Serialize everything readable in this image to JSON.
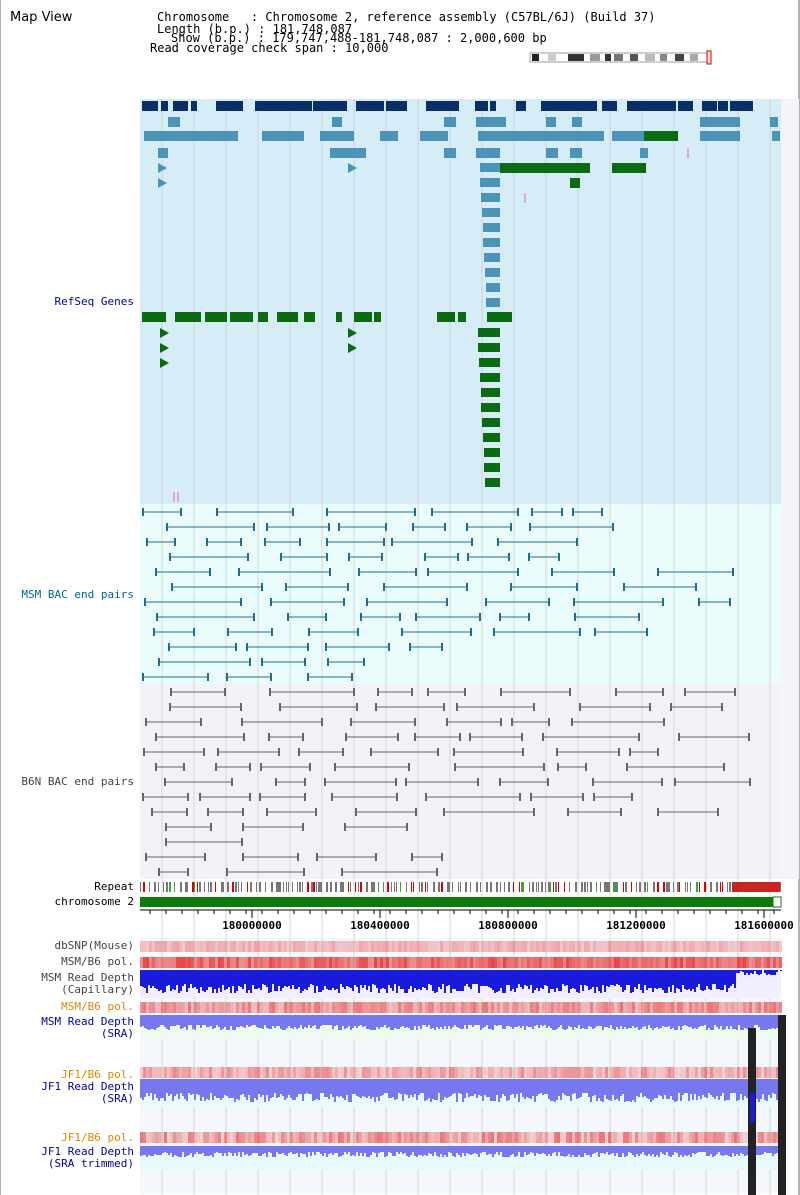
{
  "title": "Map View",
  "info": {
    "chromosome": "Chromosome   : Chromosome 2, reference assembly (C57BL/6J) (Build 37)",
    "length": "Length (b.p.) : 181,748,087",
    "show": "Show (b.p.) : 179,747,488-181,748,087 : 2,000,600 bp",
    "coverage": "Read coverage check span : 10,000"
  },
  "tracks": {
    "refseq": "RefSeq Genes",
    "msm_bac": "MSM BAC end pairs",
    "b6n_bac": "B6N BAC end pairs",
    "repeat": "Repeat",
    "chromosome": "chromosome 2",
    "dbsnp": "dbSNP(Mouse)",
    "msm_pol_1": "MSM/B6 pol.",
    "msm_depth_cap_1": "MSM Read Depth",
    "msm_depth_cap_2": "(Capillary)",
    "msm_pol_2": "MSM/B6 pol.",
    "msm_depth_sra_1": "MSM Read Depth",
    "msm_depth_sra_2": "(SRA)",
    "jf1_pol_1": "JF1/B6 pol.",
    "jf1_depth_sra_1": "JF1 Read Depth",
    "jf1_depth_sra_2": "(SRA)",
    "jf1_pol_2": "JF1/B6 pol.",
    "jf1_depth_trim_1": "JF1 Read Depth",
    "jf1_depth_trim_2": "(SRA trimmed)"
  },
  "axis": {
    "ticks": [
      "180000000",
      "180400000",
      "180800000",
      "181200000",
      "181600000"
    ]
  },
  "colors": {
    "refseq_dark": "#0a2f66",
    "refseq_mid": "#4a94b8",
    "refseq_green": "#0a6b12",
    "msm_bac": "#1f6f8b",
    "b6n_bac": "#666666",
    "chromosome_bar": "#0a7a0a",
    "depth_blue": "#1a1adb",
    "depth_light": "#7777ee",
    "pol_red": "#e86060",
    "label_blue": "#0000aa",
    "label_teal": "#006688",
    "label_orange": "#dd8800"
  }
}
